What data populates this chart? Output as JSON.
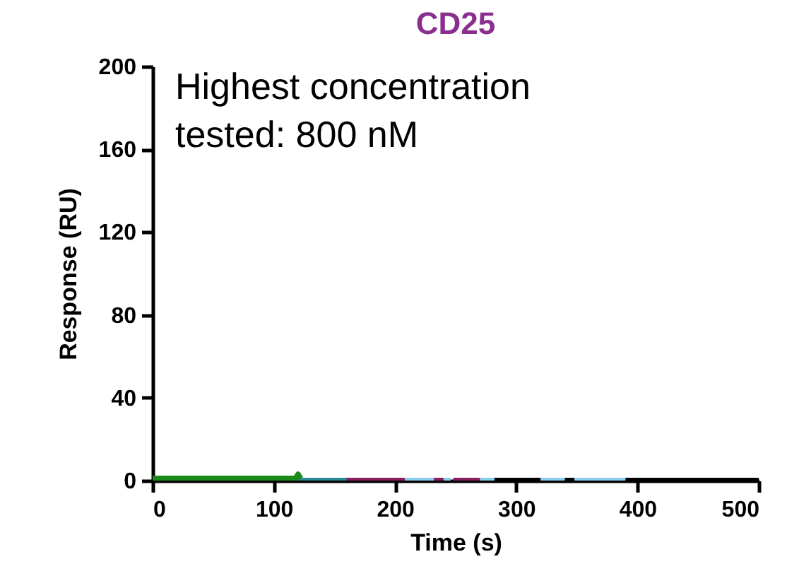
{
  "chart_data": {
    "type": "line",
    "title": "CD25",
    "xlabel": "Time (s)",
    "ylabel": "Response (RU)",
    "annotations": [
      "Highest concentration\ntested: 800 nM"
    ],
    "xlim": [
      0,
      500
    ],
    "xticks": [
      0,
      100,
      200,
      300,
      400,
      500
    ],
    "ylim": [
      0,
      200
    ],
    "yticks": [
      0,
      40,
      80,
      120,
      160,
      200
    ],
    "grid": false,
    "marker": "none",
    "line_style": "solid",
    "series": [
      {
        "color": "#000000",
        "x": [
          282,
          320,
          330,
          340,
          348,
          370,
          390,
          500
        ],
        "values": [
          0,
          0,
          null,
          0,
          0,
          null,
          0,
          0
        ]
      },
      {
        "color": "#87cef0",
        "x": [
          208,
          232,
          236,
          240,
          246,
          258,
          270,
          282,
          300,
          320,
          340,
          344,
          348,
          390
        ],
        "values": [
          0,
          0,
          null,
          0,
          0,
          null,
          0,
          0,
          null,
          0,
          0,
          null,
          0,
          0
        ]
      },
      {
        "color": "#8b1e5e",
        "x": [
          155,
          180,
          208,
          220,
          232,
          240,
          244,
          248,
          270
        ],
        "values": [
          0,
          0,
          0,
          null,
          0,
          0,
          null,
          0,
          0
        ]
      },
      {
        "color": "#2a8a96",
        "x": [
          118,
          140,
          160
        ],
        "values": [
          0,
          0,
          0
        ]
      },
      {
        "color": "#1a8a1a",
        "x": [
          0,
          60,
          118,
          120,
          122
        ],
        "values": [
          1,
          1,
          1,
          3,
          1
        ]
      }
    ]
  }
}
